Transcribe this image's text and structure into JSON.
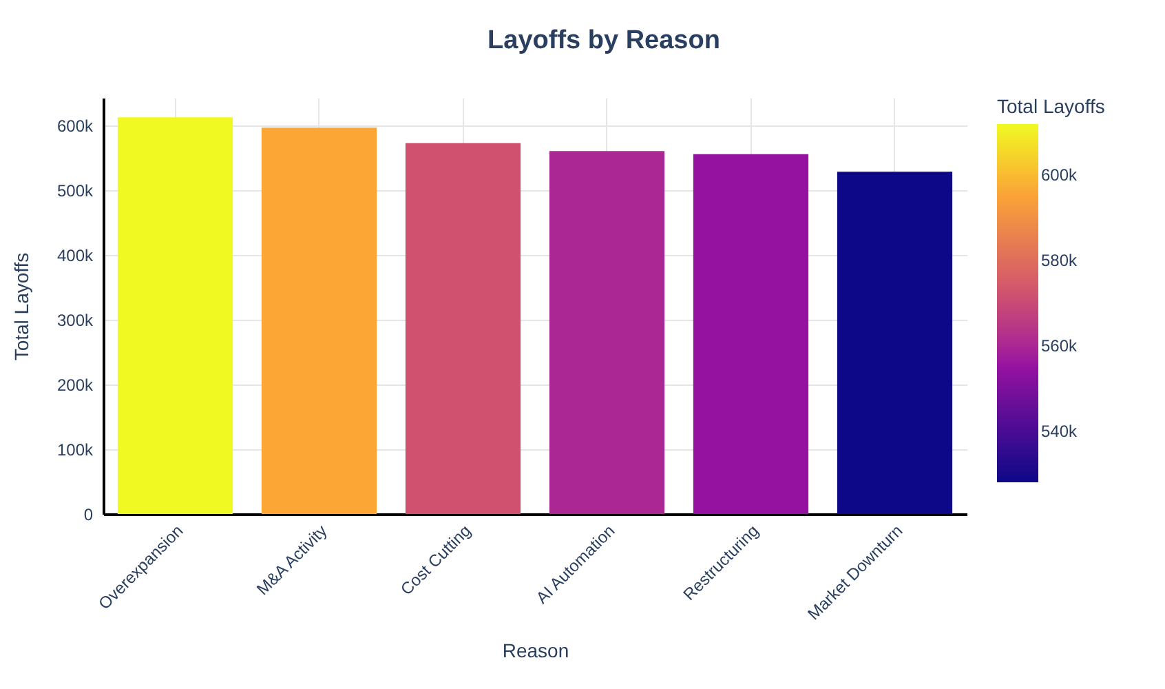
{
  "chart_data": {
    "type": "bar",
    "title": "Layoffs by Reason",
    "xlabel": "Reason",
    "ylabel": "Total Layoffs",
    "legend_title": "Total Layoffs",
    "categories": [
      "Overexpansion",
      "M&A Activity",
      "Cost Cutting",
      "AI Automation",
      "Restructuring",
      "Market Downturn"
    ],
    "values": [
      612000,
      596000,
      572000,
      560000,
      555000,
      528000
    ],
    "colors": [
      "#f0f921",
      "#fca636",
      "#d0516f",
      "#ab2793",
      "#9512a1",
      "#0d0887"
    ],
    "ylim": [
      0,
      642000
    ],
    "yticks": [
      {
        "value": 0,
        "label": "0"
      },
      {
        "value": 100000,
        "label": "100k"
      },
      {
        "value": 200000,
        "label": "200k"
      },
      {
        "value": 300000,
        "label": "300k"
      },
      {
        "value": 400000,
        "label": "400k"
      },
      {
        "value": 500000,
        "label": "500k"
      },
      {
        "value": 600000,
        "label": "600k"
      }
    ],
    "cticks": [
      {
        "value": 540000,
        "label": "540k"
      },
      {
        "value": 560000,
        "label": "560k"
      },
      {
        "value": 580000,
        "label": "580k"
      },
      {
        "value": 600000,
        "label": "600k"
      }
    ],
    "grid": true
  }
}
